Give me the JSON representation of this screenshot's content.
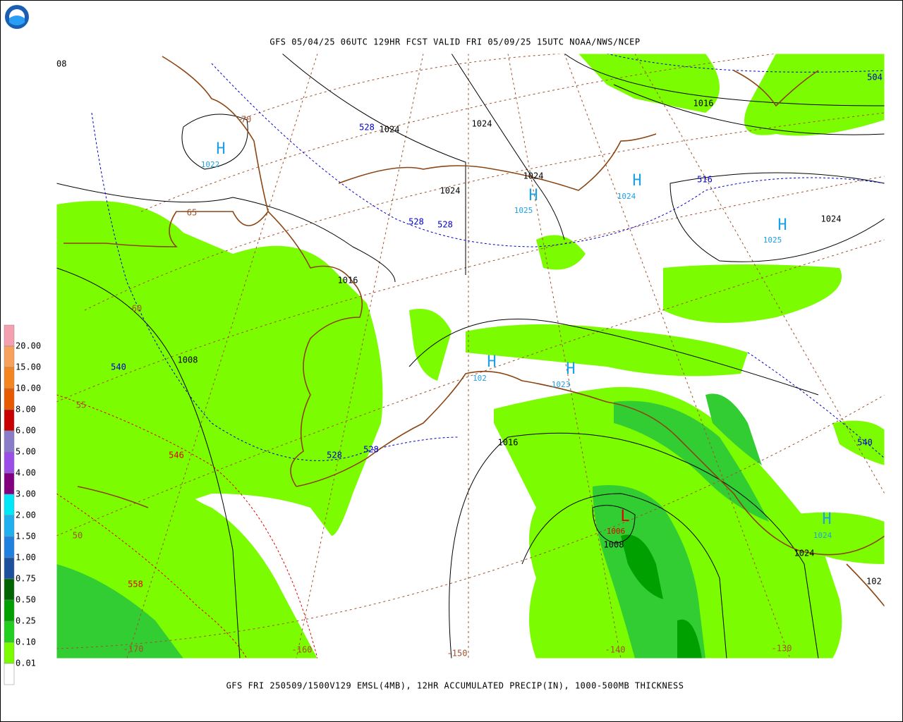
{
  "header": {
    "title": "GFS 05/04/25 06UTC 129HR FCST VALID FRI 05/09/25 15UTC NOAA/NWS/NCEP"
  },
  "map": {
    "isobar_labels": [
      "1024",
      "1024",
      "1016",
      "1024",
      "1024",
      "1024",
      "1016",
      "1008",
      "1016",
      "1008",
      "1024",
      "102",
      "08"
    ],
    "highs": [
      {
        "symbol": "H",
        "pressure": "1022"
      },
      {
        "symbol": "H",
        "pressure": "1025"
      },
      {
        "symbol": "H",
        "pressure": "1024"
      },
      {
        "symbol": "H",
        "pressure": "1025"
      },
      {
        "symbol": "H",
        "pressure": "102"
      },
      {
        "symbol": "H",
        "pressure": "1023"
      },
      {
        "symbol": "H",
        "pressure": "1024"
      }
    ],
    "lows": [
      {
        "symbol": "L",
        "pressure": "1006"
      }
    ],
    "thickness_labels": [
      "528",
      "528",
      "528",
      "516",
      "504",
      "540",
      "528",
      "528",
      "540",
      "546",
      "558"
    ],
    "latitude_labels": [
      "70",
      "65",
      "60",
      "55",
      "50"
    ],
    "longitude_labels": [
      "-170",
      "-160",
      "-150",
      "-140",
      "-130"
    ]
  },
  "legend": {
    "labels": [
      "20.00",
      "15.00",
      "10.00",
      "8.00",
      "6.00",
      "5.00",
      "4.00",
      "3.00",
      "2.00",
      "1.50",
      "1.00",
      "0.75",
      "0.50",
      "0.25",
      "0.10",
      "0.01"
    ],
    "colors": [
      "#f4a0b0",
      "#f7a15c",
      "#f5861f",
      "#e85a00",
      "#c80000",
      "#8a7cc8",
      "#9a4ee8",
      "#800080",
      "#00e8f8",
      "#20b0f0",
      "#2080e0",
      "#1c4f9c",
      "#006400",
      "#00a000",
      "#20d020",
      "#7cfc00",
      "#ffffff"
    ]
  },
  "footer": {
    "caption": "GFS FRI 250509/1500V129 EMSL(4MB), 12HR ACCUMULATED PRECIP(IN), 1000-500MB THICKNESS"
  }
}
